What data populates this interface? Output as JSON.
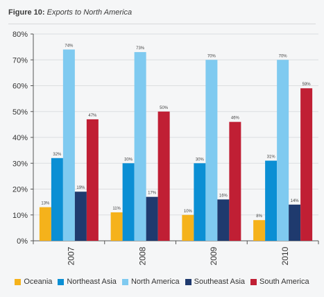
{
  "title": {
    "lead": "Figure 10:",
    "sub": "Exports to North America"
  },
  "chart_data": {
    "type": "bar",
    "categories": [
      "2007",
      "2008",
      "2009",
      "2010"
    ],
    "series": [
      {
        "name": "Oceania",
        "color": "#f5b21b",
        "values": [
          13,
          11,
          10,
          8
        ],
        "labels": [
          "13%",
          "11%",
          "10%",
          "8%"
        ]
      },
      {
        "name": "Northeast Asia",
        "color": "#0b8fd4",
        "values": [
          32,
          30,
          30,
          31
        ],
        "labels": [
          "32%",
          "30%",
          "30%",
          "31%"
        ]
      },
      {
        "name": "North America",
        "color": "#7fcaf0",
        "values": [
          74,
          73,
          70,
          70
        ],
        "labels": [
          "74%",
          "73%",
          "70%",
          "70%"
        ]
      },
      {
        "name": "Southeast Asia",
        "color": "#1f3a6e",
        "values": [
          19,
          17,
          16,
          14
        ],
        "labels": [
          "19%",
          "17%",
          "16%",
          "14%"
        ]
      },
      {
        "name": "South America",
        "color": "#c01f34",
        "values": [
          47,
          50,
          46,
          59
        ],
        "labels": [
          "47%",
          "50%",
          "46%",
          "59%"
        ]
      }
    ],
    "yticks": [
      0,
      10,
      20,
      30,
      40,
      50,
      60,
      70,
      80
    ],
    "ytick_labels": [
      "0%",
      "10%",
      "20%",
      "30%",
      "40%",
      "50%",
      "60%",
      "70%",
      "80%"
    ],
    "ylim": [
      0,
      80
    ],
    "xlabel": "",
    "ylabel": "",
    "grid": true,
    "legend_position": "bottom"
  }
}
